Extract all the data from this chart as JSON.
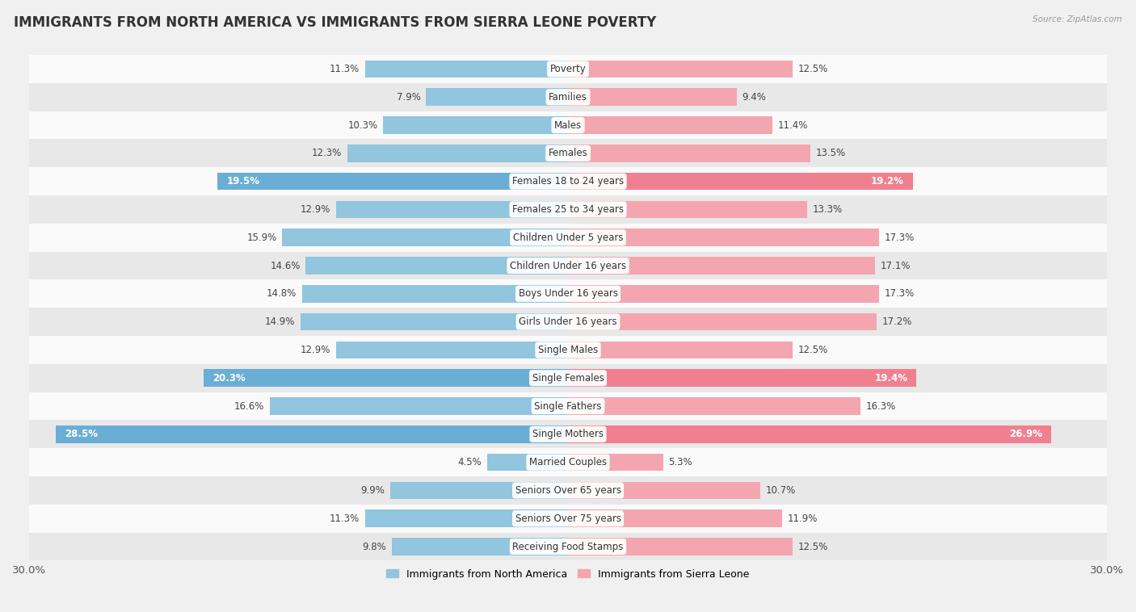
{
  "title": "IMMIGRANTS FROM NORTH AMERICA VS IMMIGRANTS FROM SIERRA LEONE POVERTY",
  "source": "Source: ZipAtlas.com",
  "categories": [
    "Poverty",
    "Families",
    "Males",
    "Females",
    "Females 18 to 24 years",
    "Females 25 to 34 years",
    "Children Under 5 years",
    "Children Under 16 years",
    "Boys Under 16 years",
    "Girls Under 16 years",
    "Single Males",
    "Single Females",
    "Single Fathers",
    "Single Mothers",
    "Married Couples",
    "Seniors Over 65 years",
    "Seniors Over 75 years",
    "Receiving Food Stamps"
  ],
  "left_values": [
    11.3,
    7.9,
    10.3,
    12.3,
    19.5,
    12.9,
    15.9,
    14.6,
    14.8,
    14.9,
    12.9,
    20.3,
    16.6,
    28.5,
    4.5,
    9.9,
    11.3,
    9.8
  ],
  "right_values": [
    12.5,
    9.4,
    11.4,
    13.5,
    19.2,
    13.3,
    17.3,
    17.1,
    17.3,
    17.2,
    12.5,
    19.4,
    16.3,
    26.9,
    5.3,
    10.7,
    11.9,
    12.5
  ],
  "left_color": "#92C5DE",
  "right_color": "#F4A6B0",
  "left_highlight_color": "#6AAED6",
  "right_highlight_color": "#F08090",
  "highlight_indices": [
    4,
    11,
    13
  ],
  "axis_max": 30.0,
  "left_label": "Immigrants from North America",
  "right_label": "Immigrants from Sierra Leone",
  "bg_color": "#f0f0f0",
  "row_colors": [
    "#fafafa",
    "#e8e8e8"
  ],
  "title_fontsize": 12,
  "label_fontsize": 8.5,
  "bar_height": 0.62
}
